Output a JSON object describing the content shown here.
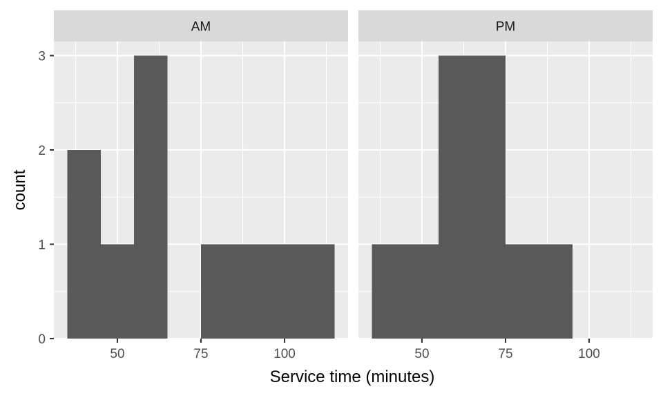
{
  "chart_data": {
    "type": "bar",
    "subtype": "histogram",
    "xlabel": "Service time (minutes)",
    "ylabel": "count",
    "bin_width": 10,
    "xlim": [
      31,
      119
    ],
    "ylim": [
      0,
      3.15
    ],
    "x_ticks": [
      {
        "value": 50,
        "label": "50"
      },
      {
        "value": 75,
        "label": "75"
      },
      {
        "value": 100,
        "label": "100"
      }
    ],
    "y_ticks": [
      {
        "value": 0,
        "label": "0"
      },
      {
        "value": 1,
        "label": "1"
      },
      {
        "value": 2,
        "label": "2"
      },
      {
        "value": 3,
        "label": "3"
      }
    ],
    "grid": true,
    "bar_color": "#595959",
    "panels": [
      {
        "label": "AM",
        "bins": [
          {
            "x0": 35,
            "x1": 45,
            "count": 2
          },
          {
            "x0": 45,
            "x1": 55,
            "count": 1
          },
          {
            "x0": 55,
            "x1": 65,
            "count": 3
          },
          {
            "x0": 65,
            "x1": 75,
            "count": 0
          },
          {
            "x0": 75,
            "x1": 85,
            "count": 1
          },
          {
            "x0": 85,
            "x1": 95,
            "count": 1
          },
          {
            "x0": 95,
            "x1": 105,
            "count": 1
          },
          {
            "x0": 105,
            "x1": 115,
            "count": 1
          }
        ]
      },
      {
        "label": "PM",
        "bins": [
          {
            "x0": 35,
            "x1": 45,
            "count": 1
          },
          {
            "x0": 45,
            "x1": 55,
            "count": 1
          },
          {
            "x0": 55,
            "x1": 65,
            "count": 3
          },
          {
            "x0": 65,
            "x1": 75,
            "count": 3
          },
          {
            "x0": 75,
            "x1": 85,
            "count": 1
          },
          {
            "x0": 85,
            "x1": 95,
            "count": 1
          },
          {
            "x0": 95,
            "x1": 105,
            "count": 0
          },
          {
            "x0": 105,
            "x1": 115,
            "count": 0
          }
        ]
      }
    ]
  }
}
